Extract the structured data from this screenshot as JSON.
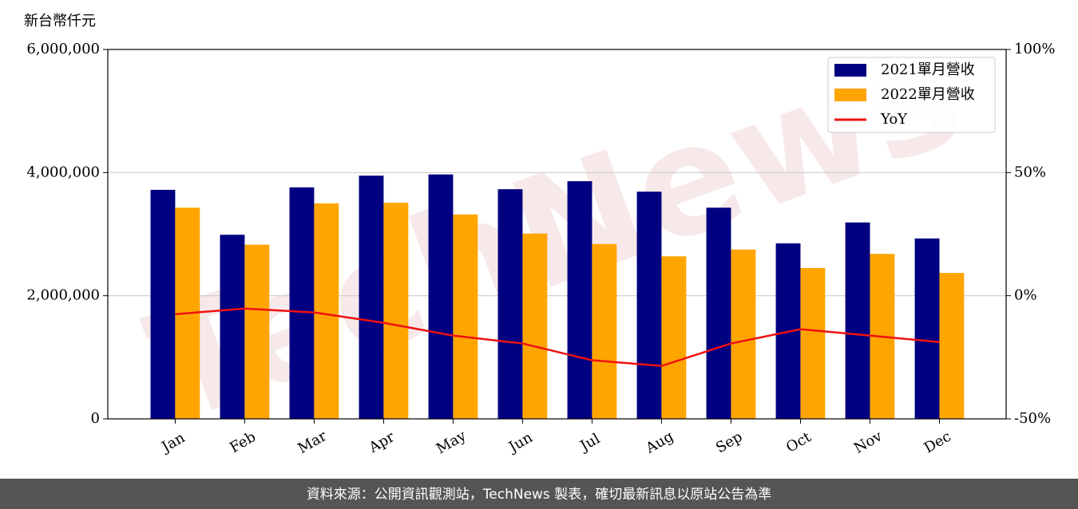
{
  "chart_data": {
    "type": "bar",
    "y_label": "新台幣仟元",
    "categories": [
      "Jan",
      "Feb",
      "Mar",
      "Apr",
      "May",
      "Jun",
      "Jul",
      "Aug",
      "Sep",
      "Oct",
      "Nov",
      "Dec"
    ],
    "series": [
      {
        "name": "2021單月營收",
        "type": "bar",
        "color": "#000080",
        "values": [
          3720000,
          2990000,
          3760000,
          3950000,
          3970000,
          3730000,
          3860000,
          3690000,
          3430000,
          2850000,
          3190000,
          2930000
        ]
      },
      {
        "name": "2022單月營收",
        "type": "bar",
        "color": "#ffa500",
        "values": [
          3430000,
          2830000,
          3500000,
          3510000,
          3320000,
          3010000,
          2840000,
          2640000,
          2750000,
          2450000,
          2680000,
          2370000
        ]
      },
      {
        "name": "YoY",
        "type": "line",
        "axis": "y2",
        "color": "#ee1111",
        "values": [
          -7.5,
          -5.2,
          -6.8,
          -11,
          -16.2,
          -19.4,
          -26.2,
          -28.5,
          -19.4,
          -13.6,
          -16.2,
          -18.8
        ]
      }
    ],
    "ylim": [
      0,
      6000000
    ],
    "yticks": [
      0,
      {
        "value": 2000000,
        "label": "2,000,000"
      },
      {
        "value": 4000000,
        "label": "4,000,000"
      },
      {
        "value": 6000000,
        "label": "6,000,000"
      }
    ],
    "y2lim": [
      -50,
      100
    ],
    "y2ticks": [
      {
        "value": -50,
        "label": "-50%"
      },
      {
        "value": 0,
        "label": "0%"
      },
      {
        "value": 50,
        "label": "50%"
      },
      {
        "value": 100,
        "label": "100%"
      }
    ],
    "grid": true,
    "legend": "upper right",
    "watermark": "TechNews",
    "footer": "資料來源：公開資訊觀測站，TechNews 製表，確切最新訊息以原站公告為準"
  }
}
